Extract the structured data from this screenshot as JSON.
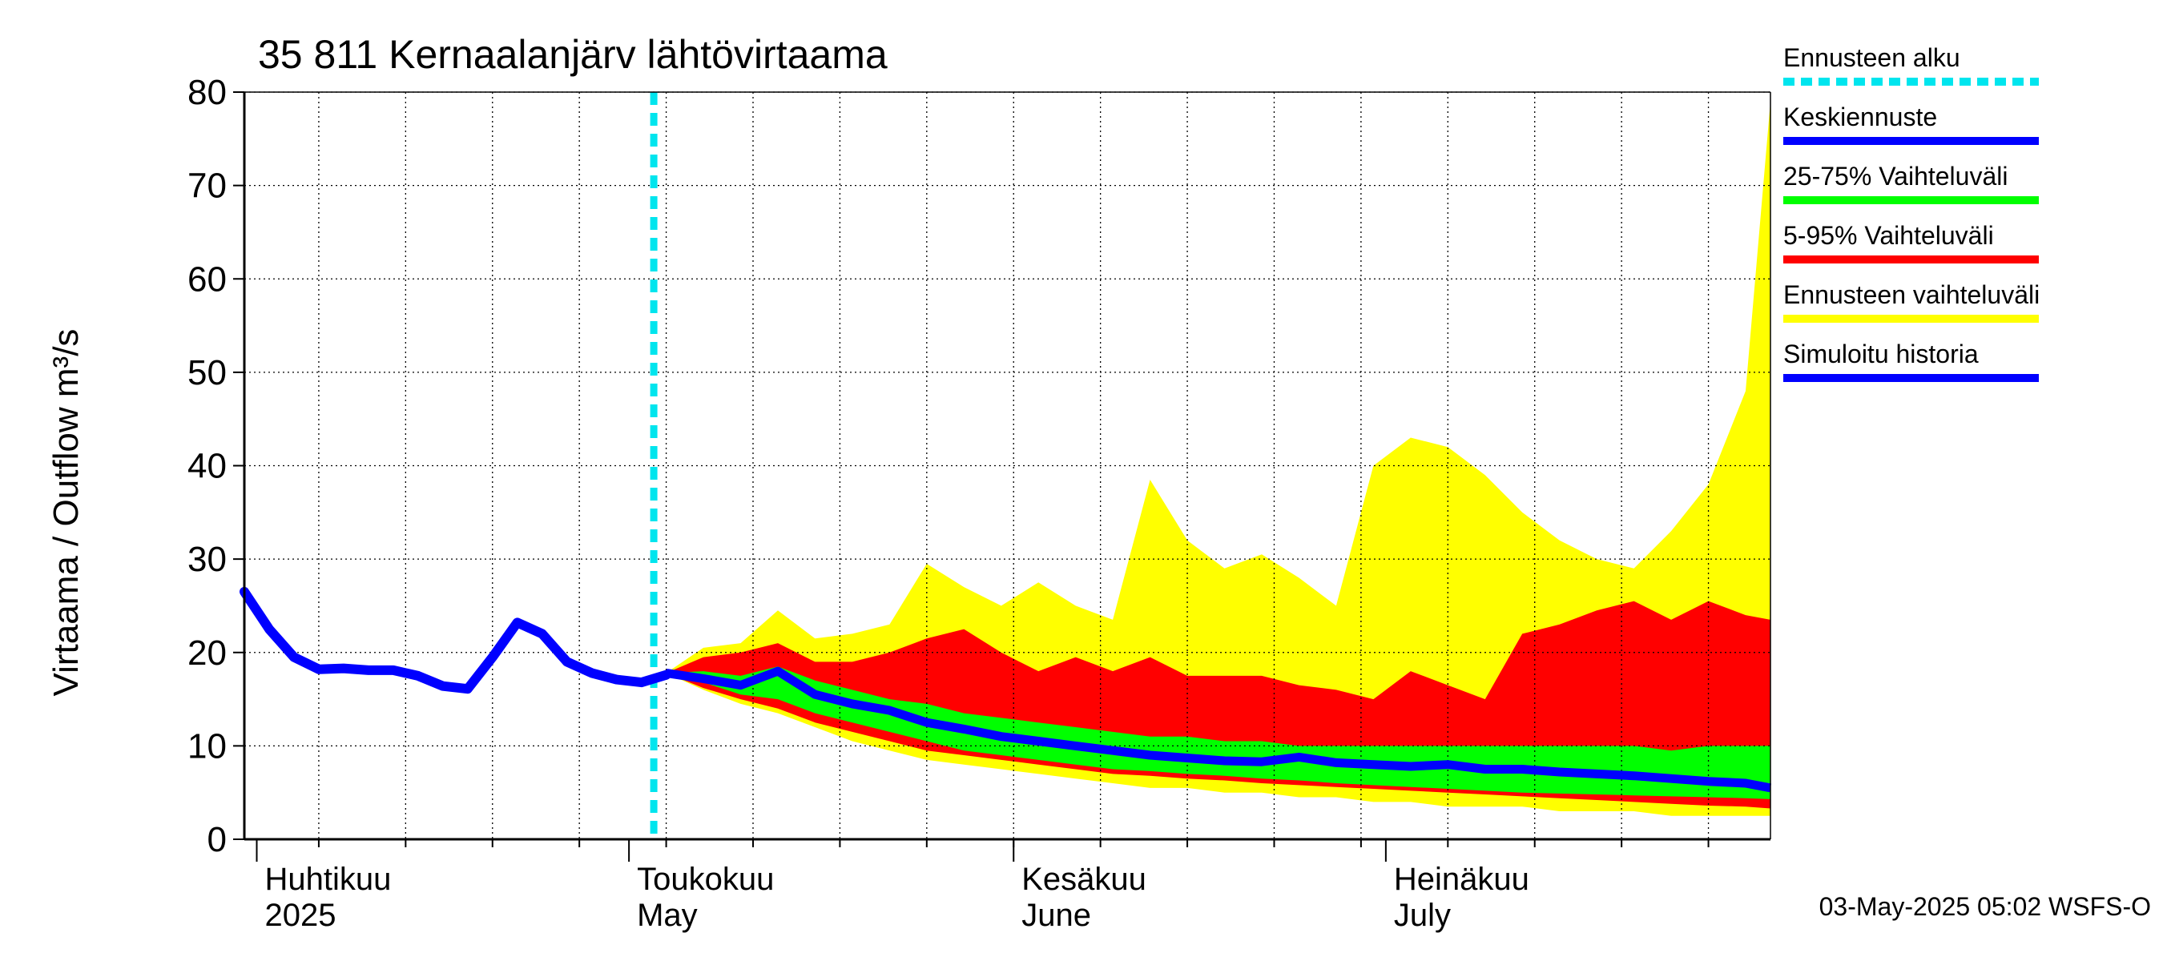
{
  "chart_data": {
    "type": "area",
    "title": "35 811 Kernaalanjärv lähtövirtaama",
    "ylabel": "Virtaama / Outflow    m³/s",
    "ylim": [
      0,
      80
    ],
    "yticks": [
      0,
      10,
      20,
      30,
      40,
      50,
      60,
      70,
      80
    ],
    "x_start": "2025-03-31",
    "x_end": "2025-08-01",
    "forecast_start": "2025-05-03",
    "months": [
      {
        "date": "2025-04-01",
        "line1": "Huhtikuu",
        "line2": "2025"
      },
      {
        "date": "2025-05-01",
        "line1": "Toukokuu",
        "line2": "May"
      },
      {
        "date": "2025-06-01",
        "line1": "Kesäkuu",
        "line2": "June"
      },
      {
        "date": "2025-07-01",
        "line1": "Heinäkuu",
        "line2": "July"
      }
    ],
    "history": {
      "name": "Simuloitu historia",
      "color": "#0000ff",
      "x": [
        "2025-03-31",
        "2025-04-02",
        "2025-04-04",
        "2025-04-06",
        "2025-04-08",
        "2025-04-10",
        "2025-04-12",
        "2025-04-14",
        "2025-04-16",
        "2025-04-18",
        "2025-04-20",
        "2025-04-22",
        "2025-04-24",
        "2025-04-26",
        "2025-04-28",
        "2025-04-30",
        "2025-05-02",
        "2025-05-04"
      ],
      "y": [
        26.5,
        22.5,
        19.5,
        18.2,
        18.3,
        18.1,
        18.1,
        17.5,
        16.4,
        16.1,
        19.5,
        23.2,
        22.0,
        19.0,
        17.8,
        17.1,
        16.8,
        17.6
      ]
    },
    "forecast_x": [
      "2025-05-04",
      "2025-05-07",
      "2025-05-10",
      "2025-05-13",
      "2025-05-16",
      "2025-05-19",
      "2025-05-22",
      "2025-05-25",
      "2025-05-28",
      "2025-05-31",
      "2025-06-03",
      "2025-06-06",
      "2025-06-09",
      "2025-06-12",
      "2025-06-15",
      "2025-06-18",
      "2025-06-21",
      "2025-06-24",
      "2025-06-27",
      "2025-06-30",
      "2025-07-03",
      "2025-07-06",
      "2025-07-09",
      "2025-07-12",
      "2025-07-15",
      "2025-07-18",
      "2025-07-21",
      "2025-07-24",
      "2025-07-27",
      "2025-07-30",
      "2025-08-01"
    ],
    "series": [
      {
        "name": "Ennusteen vaihteluväli",
        "color": "#ffff00",
        "upper": [
          17.8,
          20.5,
          21.0,
          24.5,
          21.5,
          22.0,
          23.0,
          29.5,
          27.0,
          25.0,
          27.5,
          25.0,
          23.5,
          38.5,
          32.0,
          29.0,
          30.5,
          28.0,
          25.0,
          40.0,
          43.0,
          42.0,
          39.0,
          35.0,
          32.0,
          30.0,
          29.0,
          33.0,
          38.0,
          48.0,
          79.0
        ],
        "lower": [
          17.8,
          16.0,
          14.5,
          13.5,
          12.0,
          10.5,
          9.5,
          8.5,
          8.0,
          7.5,
          7.0,
          6.5,
          6.0,
          5.5,
          5.5,
          5.0,
          5.0,
          4.5,
          4.5,
          4.0,
          4.0,
          3.5,
          3.5,
          3.5,
          3.0,
          3.0,
          3.0,
          2.5,
          2.5,
          2.5,
          2.5
        ]
      },
      {
        "name": "5-95% Vaihteluväli",
        "color": "#ff0000",
        "upper": [
          17.8,
          19.5,
          20.0,
          21.0,
          19.0,
          19.0,
          20.0,
          21.5,
          22.5,
          20.0,
          18.0,
          19.5,
          18.0,
          19.5,
          17.5,
          17.5,
          17.5,
          16.5,
          16.0,
          15.0,
          18.0,
          16.5,
          15.0,
          22.0,
          23.0,
          24.5,
          25.5,
          23.5,
          25.5,
          24.0,
          23.5
        ],
        "lower": [
          17.8,
          16.2,
          15.0,
          14.0,
          12.5,
          11.5,
          10.5,
          9.5,
          9.0,
          8.5,
          8.0,
          7.5,
          7.0,
          6.8,
          6.5,
          6.3,
          6.0,
          5.8,
          5.6,
          5.4,
          5.2,
          5.0,
          4.8,
          4.6,
          4.4,
          4.2,
          4.0,
          3.8,
          3.6,
          3.5,
          3.3
        ]
      },
      {
        "name": "25-75% Vaihteluväli",
        "color": "#00ff00",
        "upper": [
          17.8,
          18.0,
          17.5,
          18.5,
          17.0,
          16.0,
          15.0,
          14.5,
          13.5,
          13.0,
          12.5,
          12.0,
          11.5,
          11.0,
          11.0,
          10.5,
          10.5,
          10.0,
          10.0,
          10.0,
          10.0,
          10.0,
          10.0,
          10.0,
          10.0,
          10.0,
          10.0,
          9.5,
          10.0,
          10.0,
          10.0
        ],
        "lower": [
          17.8,
          16.8,
          15.5,
          15.0,
          13.5,
          12.5,
          11.5,
          10.5,
          9.5,
          9.0,
          8.5,
          8.0,
          7.5,
          7.3,
          7.0,
          6.8,
          6.5,
          6.3,
          6.0,
          5.8,
          5.6,
          5.4,
          5.2,
          5.0,
          4.9,
          4.8,
          4.7,
          4.6,
          4.5,
          4.4,
          4.3
        ]
      },
      {
        "name": "Keskiennuste",
        "color": "#0000ff",
        "values": [
          17.8,
          17.2,
          16.5,
          18.0,
          15.5,
          14.5,
          13.8,
          12.5,
          11.8,
          11.0,
          10.5,
          10.0,
          9.5,
          9.0,
          8.7,
          8.4,
          8.3,
          8.8,
          8.2,
          8.0,
          7.8,
          8.0,
          7.5,
          7.5,
          7.2,
          7.0,
          6.8,
          6.5,
          6.2,
          6.0,
          5.5
        ]
      }
    ],
    "legend": [
      {
        "label": "Ennusteen alku",
        "color": "#00e5ee",
        "style": "dashed"
      },
      {
        "label": "Keskiennuste",
        "color": "#0000ff",
        "style": "solid"
      },
      {
        "label": "25-75% Vaihteluväli",
        "color": "#00ff00",
        "style": "solid"
      },
      {
        "label": "5-95% Vaihteluväli",
        "color": "#ff0000",
        "style": "solid"
      },
      {
        "label": "Ennusteen vaihteluväli",
        "color": "#ffff00",
        "style": "solid"
      },
      {
        "label": "Simuloitu historia",
        "color": "#0000ff",
        "style": "solid"
      }
    ],
    "legend_position": "right",
    "grid": true,
    "footer": "03-May-2025 05:02 WSFS-O"
  }
}
